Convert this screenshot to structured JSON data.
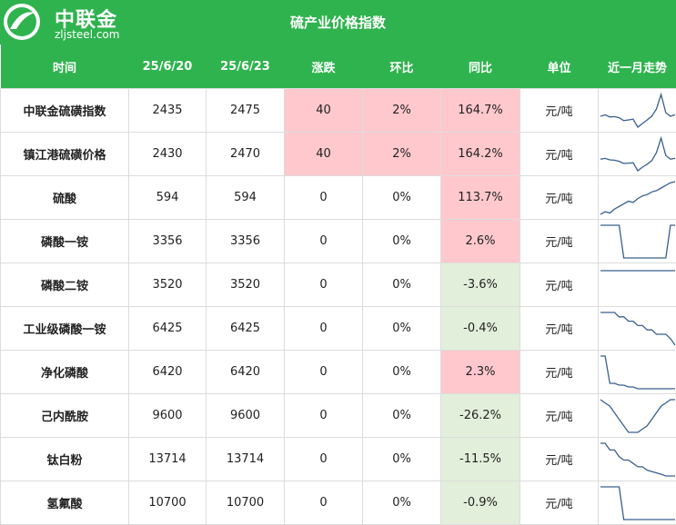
{
  "header": {
    "brand": "中联金",
    "site": "zljsteel.com",
    "title": "硫产业价格指数"
  },
  "columns": [
    "时间",
    "25/6/20",
    "25/6/23",
    "涨跌",
    "环比",
    "同比",
    "单位",
    "近一月走势"
  ],
  "colors": {
    "header_green": "#2fb34e",
    "up_pink": "#ffc8cd",
    "down_green": "#e2efda",
    "sparkline": "#3a5f8f"
  },
  "rows": [
    {
      "name": "中联金硫磺指数",
      "p1": "2435",
      "p2": "2475",
      "chg": "40",
      "mom": "2%",
      "yoy": "164.7%",
      "unit": "元/吨",
      "hl_chg": "pink",
      "hl_mom": "pink",
      "hl_yoy": "pink",
      "trend": [
        1400,
        1420,
        1390,
        1395,
        1380,
        1340,
        1350,
        1360,
        1250,
        1300,
        1350,
        1400,
        1500,
        1700,
        1450,
        1400,
        1420
      ]
    },
    {
      "name": "镇江港硫磺价格",
      "p1": "2430",
      "p2": "2470",
      "chg": "40",
      "mom": "2%",
      "yoy": "164.2%",
      "unit": "元/吨",
      "hl_chg": "pink",
      "hl_mom": "pink",
      "hl_yoy": "pink",
      "trend": [
        1410,
        1420,
        1400,
        1395,
        1380,
        1350,
        1355,
        1360,
        1250,
        1300,
        1340,
        1390,
        1500,
        1700,
        1460,
        1410,
        1420
      ]
    },
    {
      "name": "硫酸",
      "p1": "594",
      "p2": "594",
      "chg": "0",
      "mom": "0%",
      "yoy": "113.7%",
      "unit": "元/吨",
      "hl_chg": "",
      "hl_mom": "",
      "hl_yoy": "pink",
      "trend": [
        470,
        480,
        475,
        490,
        500,
        510,
        520,
        515,
        530,
        540,
        545,
        555,
        560,
        570,
        580,
        590,
        594
      ]
    },
    {
      "name": "磷酸一铵",
      "p1": "3356",
      "p2": "3356",
      "chg": "0",
      "mom": "0%",
      "yoy": "2.6%",
      "unit": "元/吨",
      "hl_chg": "",
      "hl_mom": "",
      "hl_yoy": "pink",
      "trend": [
        3356,
        3356,
        3356,
        3356,
        3356,
        3100,
        3100,
        3100,
        3100,
        3100,
        3100,
        3100,
        3100,
        3100,
        3100,
        3356,
        3356
      ]
    },
    {
      "name": "磷酸二铵",
      "p1": "3520",
      "p2": "3520",
      "chg": "0",
      "mom": "0%",
      "yoy": "-3.6%",
      "unit": "元/吨",
      "hl_chg": "",
      "hl_mom": "",
      "hl_yoy": "green",
      "trend": [
        3520,
        3520,
        3520,
        3520,
        3520,
        3520,
        3520,
        3520,
        3520,
        3520,
        3520,
        3520,
        3520,
        3520,
        3520,
        3520,
        3520
      ]
    },
    {
      "name": "工业级磷酸一铵",
      "p1": "6425",
      "p2": "6425",
      "chg": "0",
      "mom": "0%",
      "yoy": "-0.4%",
      "unit": "元/吨",
      "hl_chg": "",
      "hl_mom": "",
      "hl_yoy": "green",
      "trend": [
        6500,
        6500,
        6500,
        6500,
        6490,
        6490,
        6480,
        6480,
        6470,
        6470,
        6460,
        6460,
        6450,
        6450,
        6450,
        6440,
        6425
      ]
    },
    {
      "name": "净化磷酸",
      "p1": "6420",
      "p2": "6420",
      "chg": "0",
      "mom": "0%",
      "yoy": "2.3%",
      "unit": "元/吨",
      "hl_chg": "",
      "hl_mom": "",
      "hl_yoy": "pink",
      "trend": [
        6600,
        6600,
        6450,
        6450,
        6440,
        6440,
        6430,
        6430,
        6420,
        6420,
        6420,
        6420,
        6420,
        6420,
        6420,
        6420,
        6420
      ]
    },
    {
      "name": "己内酰胺",
      "p1": "9600",
      "p2": "9600",
      "chg": "0",
      "mom": "0%",
      "yoy": "-26.2%",
      "unit": "元/吨",
      "hl_chg": "",
      "hl_mom": "",
      "hl_yoy": "green",
      "trend": [
        9700,
        9650,
        9600,
        9500,
        9400,
        9300,
        9200,
        9200,
        9200,
        9250,
        9300,
        9400,
        9500,
        9600,
        9650,
        9700,
        9700
      ]
    },
    {
      "name": "钛白粉",
      "p1": "13714",
      "p2": "13714",
      "chg": "0",
      "mom": "0%",
      "yoy": "-11.5%",
      "unit": "元/吨",
      "hl_chg": "",
      "hl_mom": "",
      "hl_yoy": "green",
      "trend": [
        14200,
        14200,
        14100,
        14100,
        14000,
        13950,
        13950,
        13900,
        13850,
        13850,
        13800,
        13780,
        13760,
        13740,
        13714,
        13714,
        13714
      ]
    },
    {
      "name": "氢氟酸",
      "p1": "10700",
      "p2": "10700",
      "chg": "0",
      "mom": "0%",
      "yoy": "-0.9%",
      "unit": "元/吨",
      "hl_chg": "",
      "hl_mom": "",
      "hl_yoy": "green",
      "trend": [
        10900,
        10900,
        10900,
        10900,
        10900,
        10700,
        10700,
        10700,
        10700,
        10700,
        10700,
        10700,
        10700,
        10700,
        10700,
        10700,
        10700
      ]
    }
  ]
}
